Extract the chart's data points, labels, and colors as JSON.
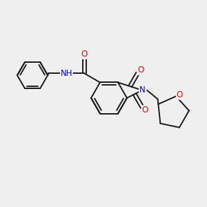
{
  "background_color": "#efefef",
  "bond_color": "#1a1a1a",
  "atom_colors": {
    "N": "#0000ff",
    "O": "#ff0000",
    "C": "#1a1a1a",
    "H": "#1a1a1a"
  },
  "figsize": [
    3.0,
    3.0
  ],
  "dpi": 100,
  "lw": 1.4,
  "fontsize": 8.5
}
